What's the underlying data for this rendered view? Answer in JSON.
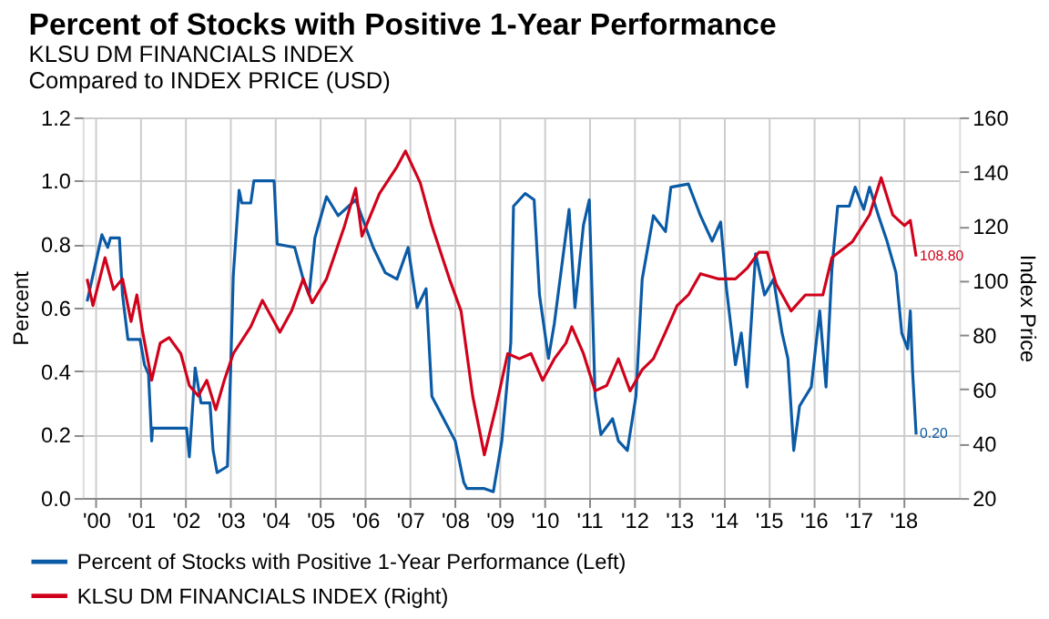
{
  "chart_data": {
    "type": "line",
    "title": "Percent of Stocks with Positive 1-Year Performance",
    "subtitle": [
      "KLSU DM FINANCIALS INDEX",
      "Compared to INDEX PRICE (USD)"
    ],
    "ylabel": "Percent",
    "y2label": "Index Price",
    "xlim": [
      1999.7,
      2019.25
    ],
    "xticks": [
      {
        "value": 2000,
        "label": "'00"
      },
      {
        "value": 2001,
        "label": "'01"
      },
      {
        "value": 2002,
        "label": "'02"
      },
      {
        "value": 2003,
        "label": "'03"
      },
      {
        "value": 2004,
        "label": "'04"
      },
      {
        "value": 2005,
        "label": "'05"
      },
      {
        "value": 2006,
        "label": "'06"
      },
      {
        "value": 2007,
        "label": "'07"
      },
      {
        "value": 2008,
        "label": "'08"
      },
      {
        "value": 2009,
        "label": "'09"
      },
      {
        "value": 2010,
        "label": "'10"
      },
      {
        "value": 2011,
        "label": "'11"
      },
      {
        "value": 2012,
        "label": "'12"
      },
      {
        "value": 2013,
        "label": "'13"
      },
      {
        "value": 2014,
        "label": "'14"
      },
      {
        "value": 2015,
        "label": "'15"
      },
      {
        "value": 2016,
        "label": "'16"
      },
      {
        "value": 2017,
        "label": "'17"
      },
      {
        "value": 2018,
        "label": "'18"
      }
    ],
    "ylim": [
      0,
      1.2
    ],
    "yticks": [
      {
        "value": 0,
        "label": "0.0"
      },
      {
        "value": 0.2,
        "label": "0.2"
      },
      {
        "value": 0.4,
        "label": "0.4"
      },
      {
        "value": 0.6,
        "label": "0.6"
      },
      {
        "value": 0.8,
        "label": "0.8"
      },
      {
        "value": 1.0,
        "label": "1.0"
      },
      {
        "value": 1.2,
        "label": "1.2"
      }
    ],
    "y2lim": [
      20,
      160
    ],
    "y2ticks": [
      20,
      40,
      60,
      80,
      100,
      120,
      140,
      160
    ],
    "grid": true,
    "legend": "bottom left",
    "line_style": "solid",
    "series": [
      {
        "name": "Percent of Stocks with Positive 1-Year Performance   (Left)",
        "color": "#0a5aa5",
        "x": [
          1999.8,
          2000.13,
          2000.26,
          2000.32,
          2000.52,
          2000.59,
          2000.71,
          2000.98,
          2001.08,
          2001.17,
          2001.24,
          2001.26,
          2002.02,
          2002.08,
          2002.21,
          2002.34,
          2002.54,
          2002.61,
          2002.7,
          2002.93,
          2003.0,
          2003.06,
          2003.19,
          2003.25,
          2003.45,
          2003.52,
          2003.97,
          2004.04,
          2004.43,
          2004.62,
          2004.75,
          2004.88,
          2005.14,
          2005.4,
          2005.79,
          2006.18,
          2006.45,
          2006.71,
          2006.96,
          2007.16,
          2007.36,
          2007.49,
          2007.75,
          2008.01,
          2008.2,
          2008.27,
          2008.66,
          2008.86,
          2009.05,
          2009.25,
          2009.31,
          2009.57,
          2009.77,
          2009.89,
          2010.09,
          2010.22,
          2010.55,
          2010.68,
          2010.87,
          2011.0,
          2011.13,
          2011.26,
          2011.52,
          2011.65,
          2011.85,
          2012.04,
          2012.18,
          2012.43,
          2012.7,
          2012.82,
          2013.21,
          2013.48,
          2013.74,
          2013.93,
          2014.06,
          2014.26,
          2014.39,
          2014.52,
          2014.71,
          2014.91,
          2015.11,
          2015.3,
          2015.43,
          2015.56,
          2015.69,
          2015.95,
          2016.14,
          2016.28,
          2016.41,
          2016.54,
          2016.8,
          2016.93,
          2017.12,
          2017.25,
          2017.45,
          2017.64,
          2017.84,
          2017.97,
          2018.1,
          2018.16,
          2018.21,
          2018.29
        ],
        "values": [
          0.62,
          0.83,
          0.79,
          0.82,
          0.82,
          0.64,
          0.5,
          0.5,
          0.42,
          0.39,
          0.18,
          0.22,
          0.22,
          0.13,
          0.41,
          0.3,
          0.3,
          0.15,
          0.08,
          0.1,
          0.4,
          0.7,
          0.97,
          0.93,
          0.93,
          1.0,
          1.0,
          0.8,
          0.79,
          0.69,
          0.64,
          0.82,
          0.95,
          0.89,
          0.94,
          0.79,
          0.71,
          0.69,
          0.79,
          0.6,
          0.66,
          0.32,
          0.25,
          0.18,
          0.05,
          0.03,
          0.03,
          0.02,
          0.18,
          0.49,
          0.92,
          0.96,
          0.94,
          0.64,
          0.44,
          0.55,
          0.91,
          0.6,
          0.86,
          0.94,
          0.32,
          0.2,
          0.25,
          0.18,
          0.15,
          0.32,
          0.69,
          0.89,
          0.84,
          0.98,
          0.99,
          0.89,
          0.81,
          0.87,
          0.66,
          0.42,
          0.52,
          0.35,
          0.77,
          0.64,
          0.69,
          0.52,
          0.44,
          0.15,
          0.29,
          0.35,
          0.59,
          0.35,
          0.72,
          0.92,
          0.92,
          0.98,
          0.91,
          0.98,
          0.89,
          0.81,
          0.71,
          0.52,
          0.47,
          0.59,
          0.4,
          0.2
        ],
        "value_labels": [
          null,
          null,
          null,
          null,
          null,
          null,
          null,
          null,
          null,
          null,
          null,
          null,
          null,
          null,
          null,
          null,
          null,
          null,
          null,
          null,
          null,
          null,
          null,
          null,
          null,
          null,
          null,
          null,
          null,
          null,
          null,
          null,
          null,
          null,
          null,
          null,
          null,
          null,
          null,
          null,
          null,
          null,
          null,
          null,
          null,
          null,
          null,
          null,
          null,
          null,
          null,
          null,
          null,
          null,
          null,
          null,
          null,
          null,
          null,
          null,
          null,
          null,
          null,
          null,
          null,
          null,
          null,
          null,
          null,
          null,
          null,
          null,
          null,
          null,
          null,
          null,
          null,
          null,
          null,
          null,
          null,
          null,
          null,
          null,
          null,
          null,
          null,
          null,
          null,
          null,
          null,
          null,
          null,
          null,
          null,
          null,
          null,
          null,
          null,
          null,
          null,
          "0.20"
        ]
      },
      {
        "name": "KLSU DM FINANCIALS INDEX (Right)",
        "color": "#d0021b",
        "axis": "y2",
        "x": [
          1999.8,
          1999.93,
          2000.2,
          2000.39,
          2000.59,
          2000.78,
          2000.91,
          2001.04,
          2001.24,
          2001.43,
          2001.63,
          2001.89,
          2002.08,
          2002.28,
          2002.47,
          2002.67,
          2002.86,
          2003.06,
          2003.45,
          2003.71,
          2003.97,
          2004.1,
          2004.36,
          2004.62,
          2004.82,
          2005.14,
          2005.54,
          2005.79,
          2005.93,
          2006.32,
          2006.71,
          2006.9,
          2007.23,
          2007.49,
          2007.88,
          2008.14,
          2008.4,
          2008.66,
          2008.92,
          2009.18,
          2009.44,
          2009.7,
          2009.96,
          2010.22,
          2010.48,
          2010.61,
          2010.87,
          2011.13,
          2011.39,
          2011.65,
          2011.91,
          2012.18,
          2012.43,
          2012.7,
          2012.96,
          2013.21,
          2013.48,
          2013.87,
          2014.26,
          2014.52,
          2014.78,
          2014.97,
          2015.17,
          2015.5,
          2015.82,
          2016.21,
          2016.41,
          2016.87,
          2017.25,
          2017.51,
          2017.77,
          2018.03,
          2018.16,
          2018.29
        ],
        "values": [
          100.6,
          90.8,
          108.4,
          96.7,
          100.6,
          84.9,
          94.7,
          81,
          63.3,
          77,
          79,
          73.1,
          61.4,
          57.5,
          63.3,
          52.5,
          63.3,
          73.1,
          83,
          92.7,
          84.9,
          81,
          88.8,
          100.6,
          91.8,
          100.6,
          120,
          133.9,
          116.3,
          132,
          141.8,
          147.6,
          135.9,
          120.2,
          100.6,
          88.8,
          57.5,
          35.9,
          53.5,
          73.1,
          71.2,
          73.1,
          63.3,
          71.2,
          77,
          83,
          73.1,
          59.4,
          61.4,
          71.2,
          59.4,
          67.2,
          71.2,
          81,
          90.8,
          94.7,
          102.5,
          100.6,
          100.6,
          104.5,
          110.4,
          110.4,
          98.6,
          88.8,
          94.7,
          94.7,
          108.4,
          114.3,
          124.1,
          137.8,
          124.1,
          120.2,
          122.1,
          108.8
        ],
        "value_labels": [
          null,
          null,
          null,
          null,
          null,
          null,
          null,
          null,
          null,
          null,
          null,
          null,
          null,
          null,
          null,
          null,
          null,
          null,
          null,
          null,
          null,
          null,
          null,
          null,
          null,
          null,
          null,
          null,
          null,
          null,
          null,
          null,
          null,
          null,
          null,
          null,
          null,
          null,
          null,
          null,
          null,
          null,
          null,
          null,
          null,
          null,
          null,
          null,
          null,
          null,
          null,
          null,
          null,
          null,
          null,
          null,
          null,
          null,
          null,
          null,
          null,
          null,
          null,
          null,
          null,
          null,
          null,
          null,
          null,
          null,
          null,
          null,
          null,
          "108.80"
        ]
      }
    ]
  }
}
